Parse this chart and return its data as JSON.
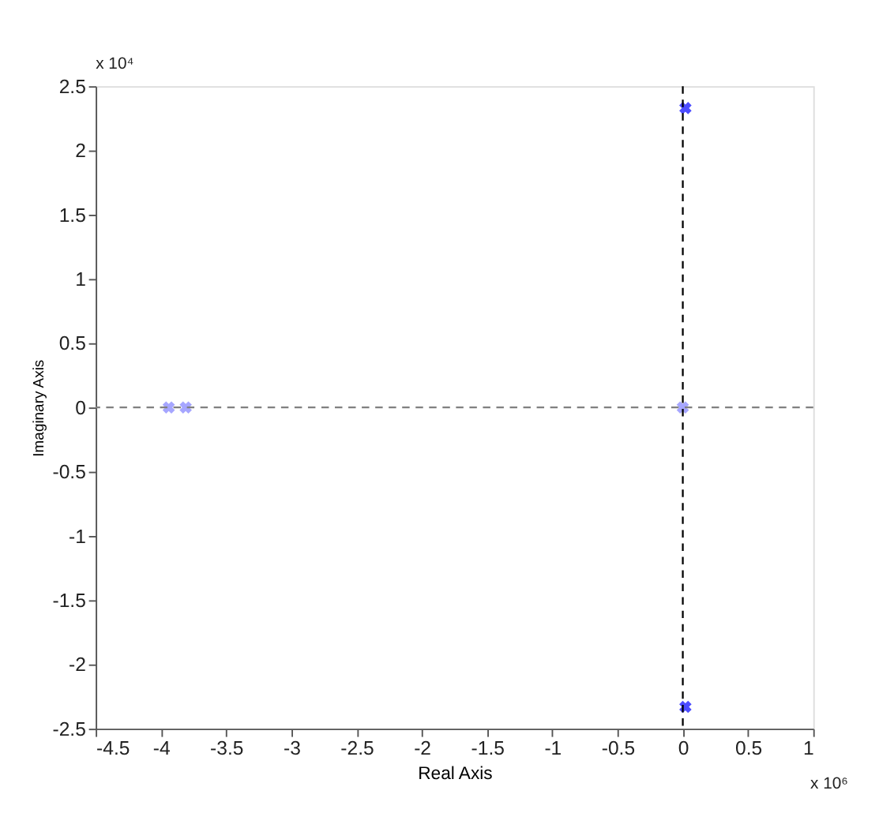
{
  "chart_data": {
    "type": "scatter",
    "xlabel": "Real Axis",
    "ylabel": "Imaginary Axis",
    "series": [
      {
        "color": "#8080ff",
        "x": [
          -3.94,
          -3.81,
          0
        ],
        "values": [
          0,
          0,
          0
        ]
      },
      {
        "color": "#0000ff",
        "x": [
          0.02,
          0.02
        ],
        "values": [
          2.33,
          -2.33
        ]
      }
    ],
    "xlim": [
      -4.5,
      1
    ],
    "xticks": [
      -4.5,
      -4,
      -3.5,
      -3,
      -2.5,
      -2,
      -1.5,
      -1,
      -0.5,
      0,
      0.5,
      1
    ],
    "ylim": [
      -2.5,
      2.5
    ],
    "yticks": [
      -2.5,
      -2,
      -1.5,
      -1,
      -0.5,
      0,
      0.5,
      1,
      1.5,
      2,
      2.5
    ],
    "ref_lines": [
      {
        "axis": "x",
        "value": 0,
        "color": "#000000",
        "line_style": "dashed"
      },
      {
        "axis": "y",
        "value": 0,
        "color": "#808080",
        "line_style": "dashed"
      }
    ],
    "annotations": [
      "x 10⁴",
      "x 10⁶"
    ],
    "marker": "cross",
    "grid": false
  }
}
